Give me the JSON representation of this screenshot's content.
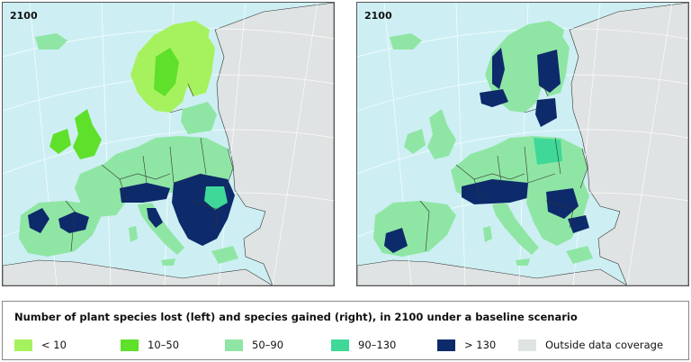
{
  "maps": [
    {
      "year": "2100"
    },
    {
      "year": "2100"
    }
  ],
  "legend": {
    "title": "Number of plant species lost (left) and species gained (right), in 2100 under a baseline scenario",
    "items": [
      {
        "label": "< 10",
        "color": "#a6f25e"
      },
      {
        "label": "10–50",
        "color": "#5fe02a"
      },
      {
        "label": "50–90",
        "color": "#8fe6a4"
      },
      {
        "label": "90–130",
        "color": "#3fd898"
      },
      {
        "label": "> 130",
        "color": "#0d2a6b"
      },
      {
        "label": "Outside data coverage",
        "color": "#e0e3e3"
      }
    ]
  },
  "colors": {
    "sea": "#cdeff3",
    "outside": "#e0e3e3",
    "border": "#333333",
    "graticule": "#ffffff"
  }
}
